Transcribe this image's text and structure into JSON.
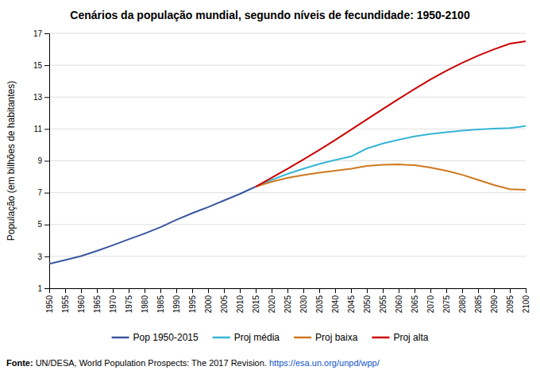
{
  "chart_data": {
    "type": "line",
    "title": "Cenários da população mundial, segundo níveis de fecundidade: 1950-2100",
    "y_label": "População (em bilhões de habitantes)",
    "xlim": [
      1950,
      2100
    ],
    "xticks": [
      1950,
      1955,
      1960,
      1965,
      1970,
      1975,
      1980,
      1985,
      1990,
      1995,
      2000,
      2005,
      2010,
      2015,
      2020,
      2025,
      2030,
      2035,
      2040,
      2045,
      2050,
      2055,
      2060,
      2065,
      2070,
      2075,
      2080,
      2085,
      2090,
      2095,
      2100
    ],
    "ylim": [
      1,
      17
    ],
    "yticks": [
      1,
      3,
      5,
      7,
      9,
      11,
      13,
      15,
      17
    ],
    "grid": "y",
    "legend": "bottom",
    "series": [
      {
        "name": "Pop 1950-2015",
        "color": "#3a56a0",
        "x": [
          1950,
          1955,
          1960,
          1965,
          1970,
          1975,
          1980,
          1985,
          1990,
          1995,
          2000,
          2005,
          2010,
          2015
        ],
        "values": [
          2.53,
          2.77,
          3.02,
          3.34,
          3.7,
          4.07,
          4.43,
          4.83,
          5.29,
          5.71,
          6.09,
          6.51,
          6.92,
          7.38
        ]
      },
      {
        "name": "Proj média",
        "color": "#35b5d5",
        "x": [
          2015,
          2020,
          2025,
          2030,
          2035,
          2040,
          2045,
          2050,
          2055,
          2060,
          2065,
          2070,
          2075,
          2080,
          2085,
          2090,
          2095,
          2100
        ],
        "values": [
          7.38,
          7.8,
          8.18,
          8.5,
          8.8,
          9.05,
          9.27,
          9.77,
          10.08,
          10.32,
          10.53,
          10.68,
          10.8,
          10.9,
          10.97,
          11.02,
          11.06,
          11.18
        ]
      },
      {
        "name": "Proj baixa",
        "color": "#d07820",
        "x": [
          2015,
          2020,
          2025,
          2030,
          2035,
          2040,
          2045,
          2050,
          2055,
          2060,
          2065,
          2070,
          2075,
          2080,
          2085,
          2090,
          2095,
          2100
        ],
        "values": [
          7.38,
          7.68,
          7.93,
          8.1,
          8.25,
          8.38,
          8.5,
          8.68,
          8.75,
          8.77,
          8.72,
          8.58,
          8.38,
          8.12,
          7.8,
          7.48,
          7.22,
          7.18
        ]
      },
      {
        "name": "Proj alta",
        "color": "#cc0000",
        "x": [
          2015,
          2020,
          2025,
          2030,
          2035,
          2040,
          2045,
          2050,
          2055,
          2060,
          2065,
          2070,
          2075,
          2080,
          2085,
          2090,
          2095,
          2100
        ],
        "values": [
          7.38,
          7.93,
          8.5,
          9.08,
          9.68,
          10.3,
          10.95,
          11.6,
          12.25,
          12.88,
          13.5,
          14.1,
          14.65,
          15.15,
          15.6,
          16.0,
          16.35,
          16.5
        ]
      }
    ],
    "annotations": [
      {
        "text": "Fonte:"
      },
      {
        "text": " UN/DESA, World Population Prospects: The 2017 Revision. "
      },
      {
        "text": "https://esa.un.org/unpd/wpp/",
        "color": "#1155cc"
      }
    ]
  }
}
